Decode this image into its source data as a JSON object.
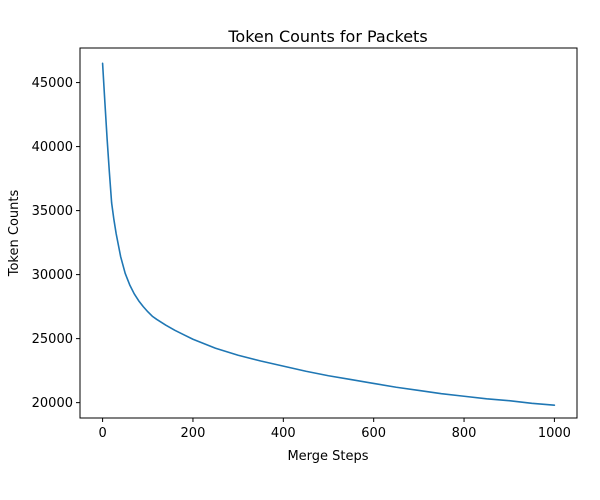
{
  "chart_data": {
    "type": "line",
    "title": "Token Counts for Packets",
    "xlabel": "Merge Steps",
    "ylabel": "Token Counts",
    "xlim": [
      -50,
      1050
    ],
    "ylim": [
      18800,
      47700
    ],
    "x_ticks": [
      0,
      200,
      400,
      600,
      800,
      1000
    ],
    "y_ticks": [
      20000,
      25000,
      30000,
      35000,
      40000,
      45000
    ],
    "grid": false,
    "legend": "none",
    "series": [
      {
        "color": "#1f77b4",
        "x": [
          0,
          5,
          10,
          15,
          20,
          25,
          30,
          40,
          50,
          60,
          70,
          80,
          90,
          100,
          110,
          120,
          140,
          160,
          180,
          200,
          250,
          300,
          350,
          400,
          450,
          500,
          550,
          600,
          650,
          700,
          750,
          800,
          850,
          900,
          950,
          1000
        ],
        "y": [
          46500,
          43500,
          40600,
          38000,
          35600,
          34300,
          33200,
          31400,
          30100,
          29200,
          28500,
          27950,
          27500,
          27100,
          26750,
          26500,
          26050,
          25650,
          25300,
          24950,
          24250,
          23700,
          23250,
          22850,
          22450,
          22100,
          21800,
          21500,
          21200,
          20950,
          20700,
          20500,
          20300,
          20150,
          19950,
          19800
        ]
      }
    ]
  }
}
